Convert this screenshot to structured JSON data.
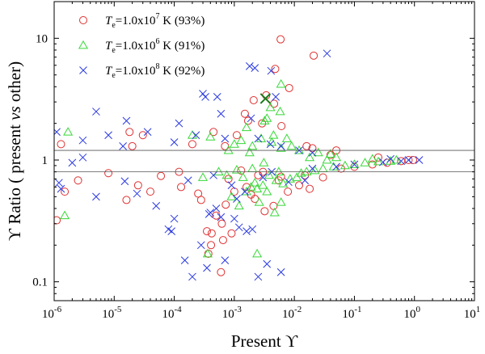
{
  "chart_data": {
    "type": "scatter",
    "xscale": "log",
    "yscale": "log",
    "xlim": [
      1e-06,
      10
    ],
    "ylim": [
      0.07,
      20
    ],
    "xlabel": "Present ϒ",
    "ylabel": "ϒ Ratio ( present vs other)",
    "ylabel_parts": {
      "symbol": "ϒ",
      "before": " Ratio ( present ",
      "italic": "vs",
      "after": " other)"
    },
    "x_ticks": [
      {
        "value": 1e-06,
        "base": "10",
        "exp": "-6"
      },
      {
        "value": 1e-05,
        "base": "10",
        "exp": "-5"
      },
      {
        "value": 0.0001,
        "base": "10",
        "exp": "-4"
      },
      {
        "value": 0.001,
        "base": "10",
        "exp": "-3"
      },
      {
        "value": 0.01,
        "base": "10",
        "exp": "-2"
      },
      {
        "value": 0.1,
        "base": "10",
        "exp": "-1"
      },
      {
        "value": 1,
        "base": "10",
        "exp": "0"
      },
      {
        "value": 10,
        "base": "10",
        "exp": "1"
      }
    ],
    "y_ticks": [
      {
        "value": 0.1,
        "label": "0.1"
      },
      {
        "value": 1,
        "label": "1"
      },
      {
        "value": 10,
        "label": "10"
      }
    ],
    "reference_lines": [
      1.2,
      0.8
    ],
    "highlight_point": {
      "x": 0.0033,
      "y": 3.2,
      "marker": "x",
      "color": "#1a7a1a"
    },
    "series": [
      {
        "name": "Te=1.0x10^7 K (93%)",
        "legend": {
          "T": "T",
          "sub": "e",
          "text": "=1.0x10",
          "exp": "7",
          "tail": " K  (93%)"
        },
        "marker": "circle",
        "color": "#e03030",
        "points": [
          [
            0.0059,
            9.8
          ],
          [
            0.021,
            7.2
          ],
          [
            0.0048,
            5.6
          ],
          [
            0.0082,
            3.9
          ],
          [
            0.0034,
            3.4
          ],
          [
            0.0021,
            3.1
          ],
          [
            0.0046,
            2.9
          ],
          [
            0.0015,
            2.4
          ],
          [
            0.0017,
            2.1
          ],
          [
            0.0029,
            2.0
          ],
          [
            0.0061,
            1.9
          ],
          [
            1.8e-05,
            1.7
          ],
          [
            3e-05,
            1.6
          ],
          [
            0.00045,
            1.7
          ],
          [
            0.0011,
            1.6
          ],
          [
            1.3e-06,
            1.35
          ],
          [
            2e-05,
            1.3
          ],
          [
            0.0002,
            1.35
          ],
          [
            0.02,
            1.25
          ],
          [
            0.05,
            1.2
          ],
          [
            1.1e-06,
            0.32
          ],
          [
            1.5e-06,
            0.55
          ],
          [
            2.5e-06,
            0.68
          ],
          [
            1.6e-05,
            0.47
          ],
          [
            2.5e-05,
            0.62
          ],
          [
            4e-05,
            0.55
          ],
          [
            0.00013,
            0.6
          ],
          [
            0.00025,
            0.53
          ],
          [
            0.00035,
            0.26
          ],
          [
            0.00037,
            0.17
          ],
          [
            0.00041,
            0.2
          ],
          [
            0.00042,
            0.25
          ],
          [
            0.0005,
            0.35
          ],
          [
            0.0006,
            0.12
          ],
          [
            0.00062,
            0.3
          ],
          [
            0.00065,
            0.22
          ],
          [
            0.00072,
            0.43
          ],
          [
            0.001,
            0.55
          ],
          [
            0.0016,
            0.6
          ],
          [
            0.0022,
            0.48
          ],
          [
            0.0045,
            0.42
          ],
          [
            0.0055,
            0.68
          ],
          [
            0.0078,
            0.55
          ],
          [
            0.012,
            0.62
          ],
          [
            0.015,
            0.75
          ],
          [
            0.03,
            0.72
          ],
          [
            0.06,
            0.85
          ],
          [
            0.1,
            0.88
          ],
          [
            0.2,
            0.92
          ],
          [
            0.35,
            0.95
          ],
          [
            0.6,
            0.98
          ],
          [
            0.8,
            1.0
          ],
          [
            0.95,
            1.0
          ],
          [
            0.25,
            1.05
          ],
          [
            0.00012,
            0.8
          ],
          [
            6e-05,
            0.74
          ],
          [
            8e-06,
            0.78
          ],
          [
            0.003,
            0.8
          ],
          [
            0.0025,
            0.75
          ],
          [
            0.0008,
            0.7
          ],
          [
            0.00028,
            0.47
          ],
          [
            0.0032,
            0.38
          ],
          [
            0.006,
            0.73
          ],
          [
            0.04,
            1.1
          ],
          [
            0.016,
            1.3
          ],
          [
            0.018,
            0.58
          ],
          [
            0.0007,
            1.3
          ],
          [
            0.0013,
            0.82
          ],
          [
            0.0009,
            0.25
          ],
          [
            0.0019,
            0.52
          ]
        ]
      },
      {
        "name": "Te=1.0x10^6 K (91%)",
        "legend": {
          "T": "T",
          "sub": "e",
          "text": "=1.0x10",
          "exp": "6",
          "tail": " K  (91%)"
        },
        "marker": "triangle",
        "color": "#38d838",
        "points": [
          [
            0.006,
            4.2
          ],
          [
            0.004,
            2.7
          ],
          [
            0.0035,
            2.2
          ],
          [
            0.0058,
            2.5
          ],
          [
            0.0032,
            2.1
          ],
          [
            0.00036,
            0.17
          ],
          [
            0.0024,
            0.17
          ],
          [
            0.0047,
            0.37
          ],
          [
            0.0012,
            0.42
          ],
          [
            0.006,
            0.45
          ],
          [
            0.0016,
            0.55
          ],
          [
            0.0019,
            0.6
          ],
          [
            0.0022,
            0.65
          ],
          [
            0.0024,
            0.58
          ],
          [
            0.003,
            0.62
          ],
          [
            0.0035,
            0.55
          ],
          [
            0.005,
            0.68
          ],
          [
            0.0065,
            0.64
          ],
          [
            0.0085,
            0.7
          ],
          [
            0.011,
            0.72
          ],
          [
            0.013,
            0.78
          ],
          [
            0.016,
            0.8
          ],
          [
            0.022,
            0.82
          ],
          [
            0.03,
            0.85
          ],
          [
            0.045,
            0.88
          ],
          [
            0.07,
            0.9
          ],
          [
            0.1,
            0.92
          ],
          [
            0.15,
            0.95
          ],
          [
            0.25,
            0.97
          ],
          [
            0.4,
            0.98
          ],
          [
            0.001,
            1.35
          ],
          [
            0.0013,
            1.45
          ],
          [
            0.002,
            1.3
          ],
          [
            0.0028,
            1.5
          ],
          [
            0.0042,
            1.4
          ],
          [
            0.006,
            1.25
          ],
          [
            0.009,
            1.3
          ],
          [
            0.012,
            1.2
          ],
          [
            0.025,
            1.15
          ],
          [
            0.04,
            1.12
          ],
          [
            0.0002,
            1.6
          ],
          [
            0.0004,
            1.55
          ],
          [
            1.5e-06,
            0.35
          ],
          [
            1.7e-06,
            1.7
          ],
          [
            0.0016,
            1.85
          ],
          [
            0.0045,
            1.6
          ],
          [
            0.0075,
            1.5
          ],
          [
            0.0009,
            0.5
          ],
          [
            0.0014,
            0.72
          ],
          [
            0.0026,
            0.45
          ],
          [
            0.0038,
            0.75
          ],
          [
            0.0055,
            0.8
          ],
          [
            0.00075,
            0.75
          ],
          [
            0.0011,
            0.83
          ],
          [
            0.002,
            0.85
          ],
          [
            0.018,
            1.05
          ],
          [
            0.035,
            1.0
          ],
          [
            0.05,
            1.05
          ],
          [
            0.2,
            1.02
          ],
          [
            0.5,
            1.0
          ],
          [
            0.0003,
            0.72
          ],
          [
            0.00055,
            0.8
          ],
          [
            0.0008,
            1.2
          ],
          [
            0.0018,
            1.15
          ],
          [
            0.0031,
            0.95
          ]
        ]
      },
      {
        "name": "Te=1.0x10^8 K (92%)",
        "legend": {
          "T": "T",
          "sub": "e",
          "text": "=1.0x10",
          "exp": "8",
          "tail": " K  (92%)"
        },
        "marker": "x",
        "color": "#2a3adf",
        "points": [
          [
            0.0018,
            5.9
          ],
          [
            0.0022,
            5.7
          ],
          [
            0.0041,
            5.4
          ],
          [
            0.035,
            7.5
          ],
          [
            0.0049,
            3.3
          ],
          [
            0.00033,
            3.3
          ],
          [
            0.0003,
            3.5
          ],
          [
            0.00052,
            3.3
          ],
          [
            0.0006,
            2.4
          ],
          [
            0.00012,
            2.0
          ],
          [
            5e-06,
            2.5
          ],
          [
            1.6e-05,
            2.1
          ],
          [
            3.6e-05,
            1.7
          ],
          [
            0.0019,
            2.2
          ],
          [
            0.00023,
            1.6
          ],
          [
            1.1e-06,
            1.7
          ],
          [
            1.2e-06,
            0.65
          ],
          [
            1.3e-06,
            0.58
          ],
          [
            2e-06,
            0.95
          ],
          [
            3e-06,
            1.05
          ],
          [
            5e-06,
            0.5
          ],
          [
            1.5e-05,
            0.67
          ],
          [
            2.4e-05,
            0.53
          ],
          [
            5e-05,
            0.42
          ],
          [
            0.0001,
            0.33
          ],
          [
            8e-05,
            0.27
          ],
          [
            9e-05,
            0.26
          ],
          [
            0.00015,
            0.15
          ],
          [
            0.0002,
            0.11
          ],
          [
            0.00035,
            0.13
          ],
          [
            0.00028,
            0.2
          ],
          [
            0.0004,
            0.37
          ],
          [
            0.00038,
            0.36
          ],
          [
            0.0005,
            0.4
          ],
          [
            0.0006,
            0.34
          ],
          [
            0.0011,
            0.48
          ],
          [
            0.0015,
            0.55
          ],
          [
            0.001,
            0.33
          ],
          [
            0.0012,
            0.28
          ],
          [
            0.0016,
            0.26
          ],
          [
            0.002,
            0.27
          ],
          [
            0.0025,
            0.11
          ],
          [
            0.0035,
            0.14
          ],
          [
            0.006,
            0.12
          ],
          [
            0.008,
            0.66
          ],
          [
            0.015,
            0.68
          ],
          [
            0.0007,
            0.15
          ],
          [
            0.02,
            0.85
          ],
          [
            0.05,
            0.88
          ],
          [
            0.1,
            0.92
          ],
          [
            0.3,
            0.96
          ],
          [
            0.6,
            0.98
          ],
          [
            1.2,
            1.0
          ],
          [
            0.8,
            1.0
          ],
          [
            0.4,
            1.02
          ],
          [
            0.012,
            1.2
          ],
          [
            0.02,
            1.15
          ],
          [
            0.006,
            1.3
          ],
          [
            0.004,
            1.35
          ],
          [
            0.0007,
            1.5
          ],
          [
            8e-06,
            1.6
          ],
          [
            3e-06,
            1.45
          ],
          [
            1.4e-05,
            1.3
          ],
          [
            0.0001,
            1.4
          ],
          [
            0.0025,
            1.5
          ],
          [
            0.00017,
            0.68
          ],
          [
            0.00045,
            0.75
          ],
          [
            0.0009,
            0.62
          ],
          [
            0.003,
            0.72
          ],
          [
            0.0042,
            0.8
          ]
        ]
      }
    ]
  }
}
